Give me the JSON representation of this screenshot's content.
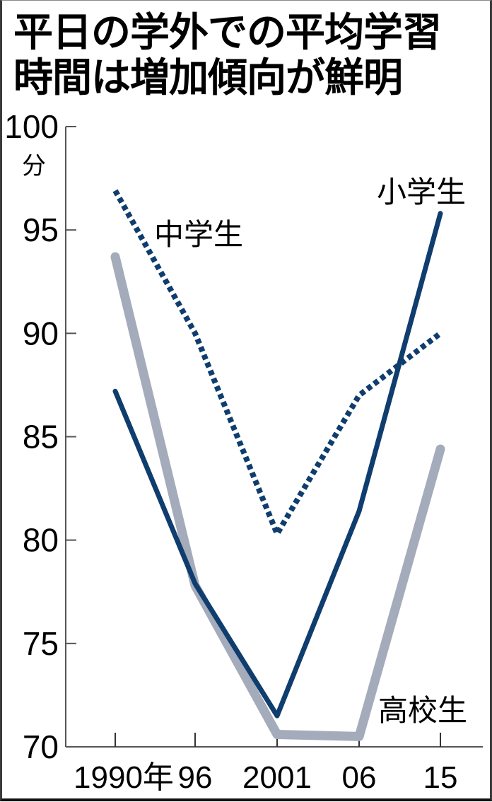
{
  "title": {
    "line1": "平日の学外での平均学習",
    "line2": "時間は増加傾向が鮮明"
  },
  "chart_data": {
    "type": "line",
    "title": "平日の学外での平均学習時間は増加傾向が鮮明",
    "xlabel": "",
    "ylabel": "分",
    "categories": [
      "1990年",
      "96",
      "2001",
      "06",
      "15"
    ],
    "x": [
      1990,
      1996,
      2001,
      2006,
      2015
    ],
    "ylim": [
      70,
      100
    ],
    "yticks": [
      70,
      75,
      80,
      85,
      90,
      95,
      100
    ],
    "y_tick_labels": [
      "70",
      "75",
      "80",
      "85",
      "90",
      "95",
      "100"
    ],
    "y_unit": "分",
    "grid": false,
    "legend": "inline labels",
    "series": [
      {
        "name": "小学生",
        "style": "solid",
        "color": "#0f3d6e",
        "values": [
          87.2,
          77.9,
          71.5,
          81.4,
          95.8
        ]
      },
      {
        "name": "中学生",
        "style": "dotted",
        "color": "#0f3d6e",
        "values": [
          96.9,
          90.0,
          80.3,
          87.0,
          90.0
        ]
      },
      {
        "name": "高校生",
        "style": "solid-thick",
        "color": "#a4abbb",
        "values": [
          93.7,
          77.8,
          70.6,
          70.5,
          84.4
        ]
      }
    ]
  },
  "colors": {
    "navy": "#0f3d6e",
    "gray": "#a4abbb",
    "axis": "#555555"
  }
}
